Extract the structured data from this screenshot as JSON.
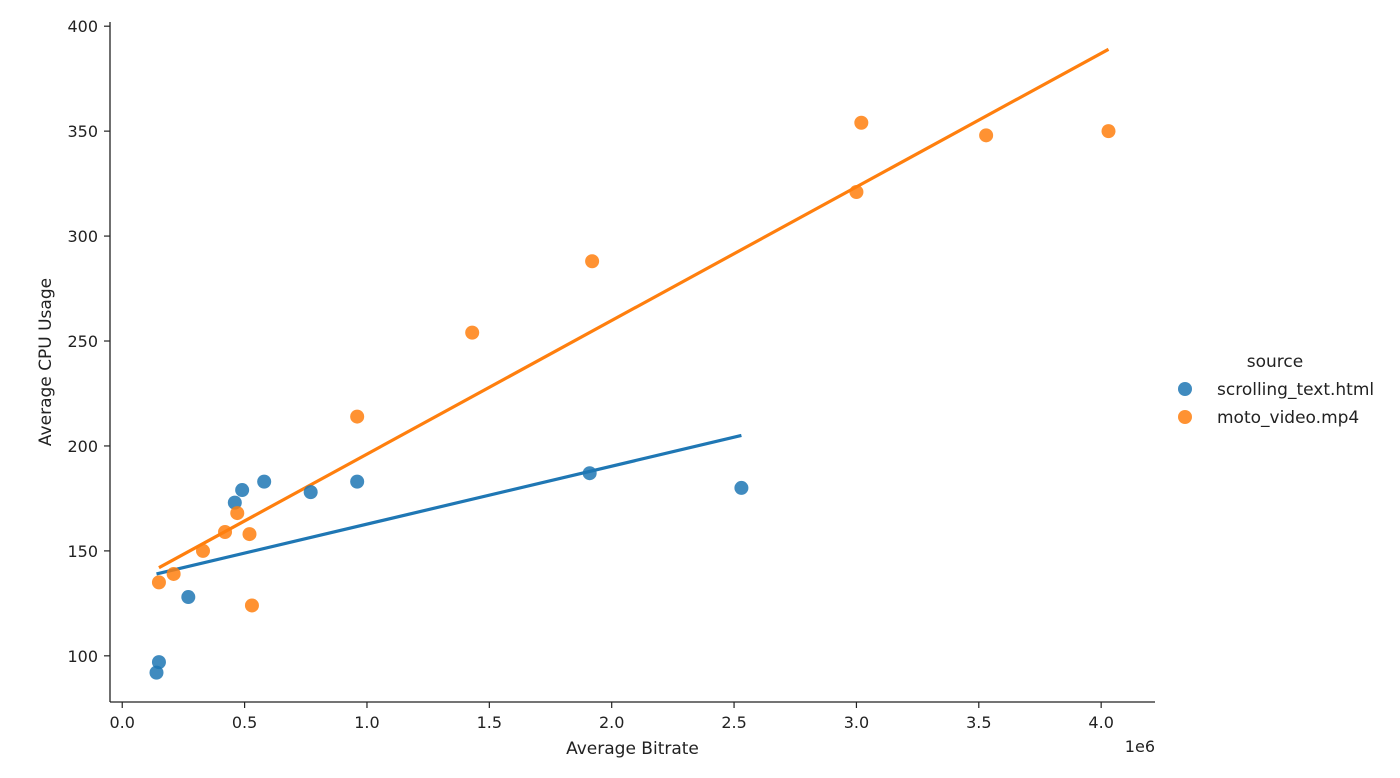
{
  "chart_data": {
    "type": "scatter",
    "title": "",
    "xlabel": "Average Bitrate",
    "ylabel": "Average CPU Usage",
    "x_offset_label": "1e6",
    "xlim": [
      -50000,
      4220000
    ],
    "ylim": [
      78,
      402
    ],
    "x_ticks": [
      0,
      500000,
      1000000,
      1500000,
      2000000,
      2500000,
      3000000,
      3500000,
      4000000
    ],
    "x_tick_labels": [
      "0.0",
      "0.5",
      "1.0",
      "1.5",
      "2.0",
      "2.5",
      "3.0",
      "3.5",
      "4.0"
    ],
    "y_ticks": [
      100,
      150,
      200,
      250,
      300,
      350,
      400
    ],
    "y_tick_labels": [
      "100",
      "150",
      "200",
      "250",
      "300",
      "350",
      "400"
    ],
    "grid": false,
    "legend": {
      "title": "source",
      "placement": "right"
    },
    "series": [
      {
        "name": "scrolling_text.html",
        "color": "#1f77b4",
        "points": [
          [
            140000,
            92
          ],
          [
            150000,
            97
          ],
          [
            270000,
            128
          ],
          [
            460000,
            173
          ],
          [
            490000,
            179
          ],
          [
            580000,
            183
          ],
          [
            770000,
            178
          ],
          [
            960000,
            183
          ],
          [
            1910000,
            187
          ],
          [
            2530000,
            180
          ]
        ],
        "fit": [
          [
            140000,
            139
          ],
          [
            2530000,
            205
          ]
        ]
      },
      {
        "name": "moto_video.mp4",
        "color": "#ff7f0e",
        "points": [
          [
            150000,
            135
          ],
          [
            210000,
            139
          ],
          [
            330000,
            150
          ],
          [
            420000,
            159
          ],
          [
            470000,
            168
          ],
          [
            520000,
            158
          ],
          [
            530000,
            124
          ],
          [
            960000,
            214
          ],
          [
            1430000,
            254
          ],
          [
            1920000,
            288
          ],
          [
            3000000,
            321
          ],
          [
            3020000,
            354
          ],
          [
            3530000,
            348
          ],
          [
            4030000,
            350
          ]
        ],
        "fit": [
          [
            150000,
            142
          ],
          [
            4030000,
            389
          ]
        ]
      }
    ]
  }
}
